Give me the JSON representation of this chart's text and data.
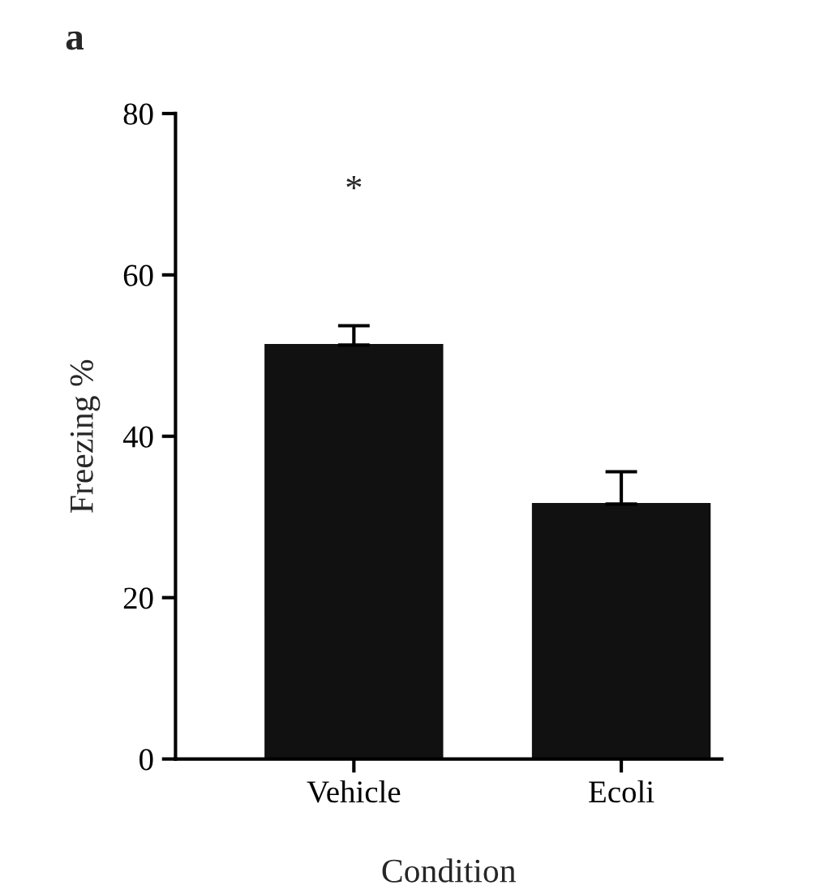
{
  "chart_data": {
    "type": "bar",
    "title": "a",
    "xlabel": "Condition",
    "ylabel": "Freezing %",
    "categories": [
      "Vehicle",
      "Ecoli"
    ],
    "values": [
      51.3,
      31.6
    ],
    "color": "#111111",
    "errors": [
      [
        51.3,
        53.7
      ],
      [
        31.6,
        35.6
      ]
    ],
    "ylim": [
      0,
      80
    ],
    "yticks": [
      0,
      20,
      40,
      60,
      80
    ],
    "grid": false,
    "annotations": [
      "*"
    ]
  }
}
